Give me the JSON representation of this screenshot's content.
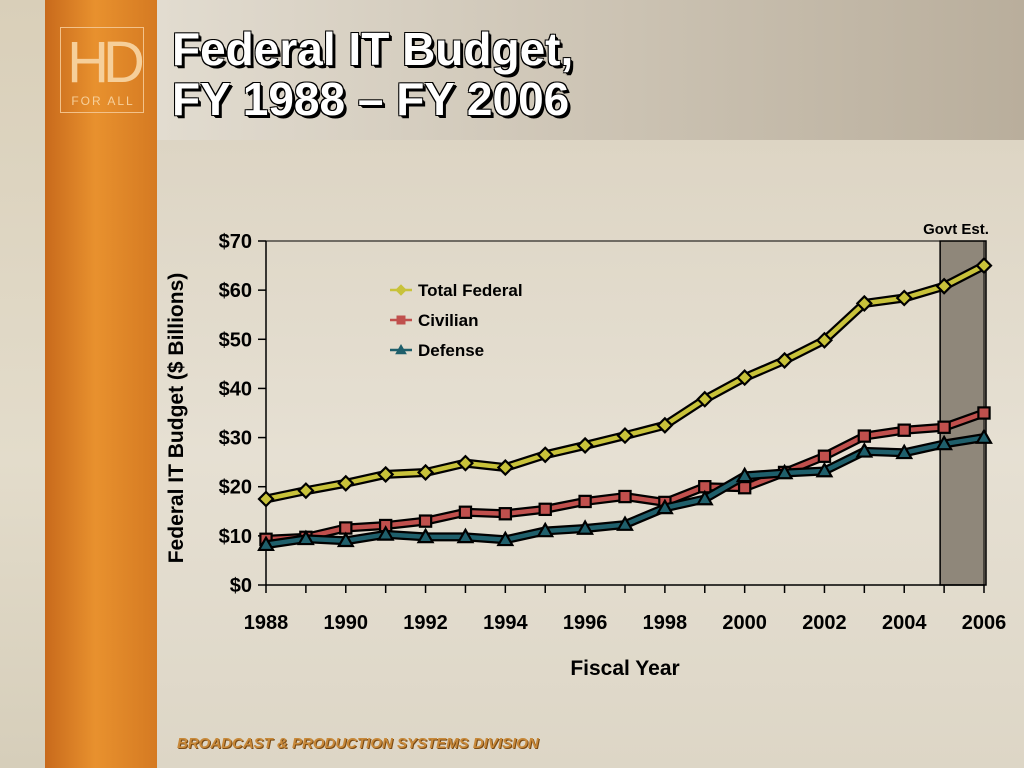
{
  "slide": {
    "title_line1": "Federal IT Budget,",
    "title_line2": "FY 1988 – FY 2006",
    "logo_main": "HD",
    "logo_sub": "FOR ALL",
    "footer": "BROADCAST & PRODUCTION SYSTEMS DIVISION"
  },
  "chart_data": {
    "type": "line",
    "xlabel": "Fiscal Year",
    "ylabel": "Federal IT Budget ($ Billions)",
    "x": [
      1988,
      1989,
      1990,
      1991,
      1992,
      1993,
      1994,
      1995,
      1996,
      1997,
      1998,
      1999,
      2000,
      2001,
      2002,
      2003,
      2004,
      2005,
      2006
    ],
    "xticks": [
      "1988",
      "1990",
      "1992",
      "1994",
      "1996",
      "1998",
      "2000",
      "2002",
      "2004",
      "2006"
    ],
    "xtick_values": [
      1988,
      1990,
      1992,
      1994,
      1996,
      1998,
      2000,
      2002,
      2004,
      2006
    ],
    "yticks": [
      "$0",
      "$10",
      "$20",
      "$30",
      "$40",
      "$50",
      "$60",
      "$70"
    ],
    "ytick_values": [
      0,
      10,
      20,
      30,
      40,
      50,
      60,
      70
    ],
    "xlim": [
      1988,
      2006
    ],
    "ylim": [
      0,
      70
    ],
    "grid": false,
    "legend_position": "upper-center",
    "series": [
      {
        "name": "Total Federal",
        "marker": "diamond",
        "color": "#c8c23a",
        "values": [
          17.5,
          19.2,
          20.7,
          22.5,
          22.9,
          24.8,
          23.9,
          26.5,
          28.4,
          30.4,
          32.5,
          37.8,
          42.2,
          45.7,
          49.8,
          57.3,
          58.4,
          60.8,
          65.0
        ]
      },
      {
        "name": "Civilian",
        "marker": "square",
        "color": "#c0504d",
        "values": [
          9.3,
          9.7,
          11.6,
          12.1,
          13.0,
          14.8,
          14.5,
          15.4,
          17.0,
          18.0,
          16.8,
          20.0,
          19.8,
          22.9,
          26.2,
          30.3,
          31.5,
          32.1,
          35.0
        ]
      },
      {
        "name": "Defense",
        "marker": "triangle",
        "color": "#1f5f6b",
        "values": [
          8.2,
          9.4,
          9.0,
          10.3,
          9.8,
          9.8,
          9.2,
          11.0,
          11.5,
          12.3,
          15.7,
          17.5,
          22.2,
          22.8,
          23.2,
          27.2,
          26.9,
          28.7,
          30.0
        ]
      }
    ],
    "annotation": {
      "label": "Govt Est.",
      "x_start": 2004.9,
      "x_end": 2006.05,
      "color": "#8f877a"
    }
  }
}
